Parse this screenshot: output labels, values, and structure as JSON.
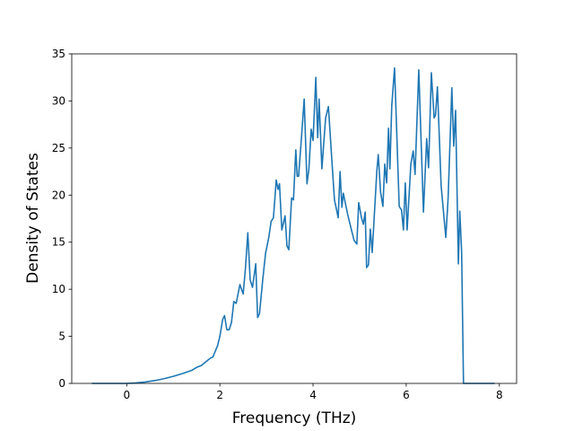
{
  "chart_data": {
    "type": "line",
    "xlabel": "Frequency (THz)",
    "ylabel": "Density of States",
    "color": "#1f77b4",
    "xlim": [
      -1.18,
      8.37
    ],
    "xticks": [
      0,
      2,
      4,
      6,
      8
    ],
    "ylim": [
      0,
      35
    ],
    "yticks": [
      0,
      5,
      10,
      15,
      20,
      25,
      30,
      35
    ],
    "x": [
      -0.75,
      -0.5,
      0,
      0.2,
      0.4,
      0.6,
      0.8,
      1.0,
      1.2,
      1.4,
      1.5,
      1.6,
      1.7,
      1.8,
      1.85,
      1.9,
      1.95,
      2.0,
      2.06,
      2.1,
      2.15,
      2.2,
      2.25,
      2.3,
      2.35,
      2.43,
      2.5,
      2.55,
      2.6,
      2.65,
      2.7,
      2.77,
      2.81,
      2.85,
      2.92,
      2.98,
      3.05,
      3.1,
      3.15,
      3.21,
      3.25,
      3.28,
      3.33,
      3.4,
      3.44,
      3.48,
      3.54,
      3.58,
      3.63,
      3.66,
      3.69,
      3.75,
      3.81,
      3.87,
      3.91,
      3.96,
      4.0,
      4.06,
      4.1,
      4.13,
      4.19,
      4.27,
      4.33,
      4.4,
      4.46,
      4.54,
      4.58,
      4.62,
      4.65,
      4.75,
      4.88,
      4.94,
      4.98,
      5.04,
      5.08,
      5.12,
      5.15,
      5.19,
      5.23,
      5.27,
      5.37,
      5.4,
      5.45,
      5.5,
      5.54,
      5.58,
      5.62,
      5.65,
      5.69,
      5.75,
      5.85,
      5.9,
      5.94,
      5.98,
      6.02,
      6.1,
      6.15,
      6.19,
      6.27,
      6.37,
      6.44,
      6.48,
      6.54,
      6.6,
      6.63,
      6.67,
      6.75,
      6.85,
      6.9,
      6.98,
      7.02,
      7.06,
      7.12,
      7.15,
      7.19,
      7.23,
      7.5,
      7.9
    ],
    "values": [
      0,
      0,
      0,
      0.05,
      0.15,
      0.3,
      0.5,
      0.75,
      1.05,
      1.4,
      1.7,
      1.9,
      2.3,
      2.7,
      2.8,
      3.4,
      4.0,
      5.0,
      6.8,
      7.2,
      5.7,
      5.7,
      6.5,
      8.7,
      8.5,
      10.5,
      9.5,
      12.3,
      16.0,
      11.0,
      10.2,
      12.7,
      7.0,
      7.4,
      11.0,
      13.8,
      15.5,
      17.2,
      17.6,
      21.6,
      20.6,
      21.2,
      16.3,
      17.8,
      14.6,
      14.2,
      19.7,
      19.5,
      24.8,
      22.0,
      22.0,
      26.0,
      30.2,
      21.2,
      22.7,
      27.0,
      25.8,
      32.5,
      26.1,
      30.2,
      22.8,
      28.2,
      29.4,
      24.0,
      19.5,
      17.6,
      22.5,
      18.7,
      20.2,
      17.8,
      15.2,
      14.8,
      19.2,
      17.6,
      16.9,
      18.2,
      12.3,
      12.6,
      16.4,
      13.9,
      22.6,
      24.3,
      20.3,
      18.8,
      23.3,
      21.3,
      27.1,
      22.8,
      29.5,
      33.5,
      18.8,
      18.4,
      16.3,
      21.3,
      16.3,
      23.3,
      24.7,
      22.2,
      33.3,
      18.2,
      26.0,
      22.9,
      33.0,
      28.2,
      28.5,
      31.5,
      21.0,
      15.5,
      19.7,
      31.4,
      25.2,
      29.0,
      12.7,
      18.3,
      14.0,
      0,
      0,
      0
    ]
  }
}
